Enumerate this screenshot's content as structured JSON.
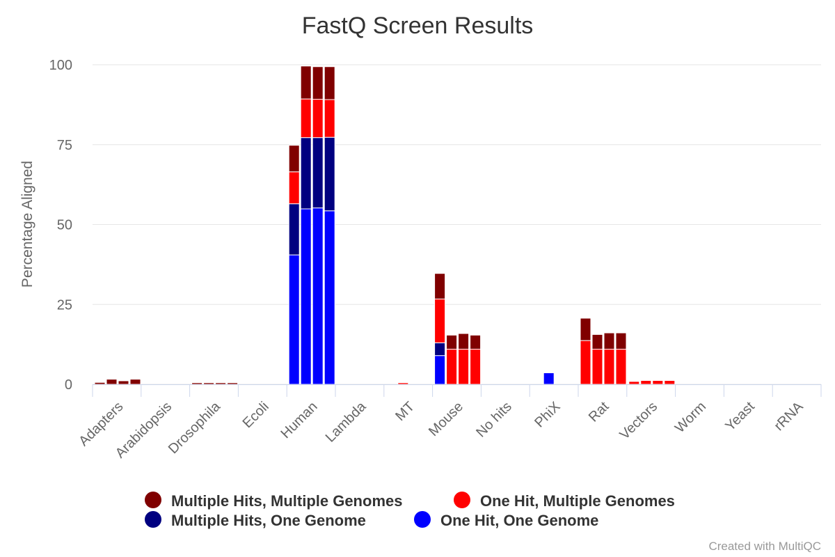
{
  "chart_data": {
    "type": "bar",
    "stacked": true,
    "title": "FastQ Screen Results",
    "ylabel": "Percentage Aligned",
    "ylim": [
      0,
      100
    ],
    "yticks": [
      0,
      25,
      50,
      75,
      100
    ],
    "grid": true,
    "legend_position": "bottom",
    "bars_per_category": 4,
    "categories": [
      "Adapters",
      "Arabidopsis",
      "Drosophila",
      "Ecoli",
      "Human",
      "Lambda",
      "MT",
      "Mouse",
      "No hits",
      "PhiX",
      "Rat",
      "Vectors",
      "Worm",
      "Yeast",
      "rRNA"
    ],
    "series": [
      {
        "name": "One Hit, One Genome",
        "color": "#0000ff",
        "values": [
          [
            0,
            0,
            0,
            0
          ],
          [
            0,
            0,
            0,
            0
          ],
          [
            0,
            0,
            0,
            0
          ],
          [
            0,
            0,
            0,
            0
          ],
          [
            40.5,
            54.9,
            55.2,
            54.3
          ],
          [
            0,
            0,
            0,
            0
          ],
          [
            0,
            0,
            0,
            0
          ],
          [
            9.0,
            0,
            0,
            0
          ],
          [
            0,
            0,
            0,
            0
          ],
          [
            0,
            3.6,
            0,
            0
          ],
          [
            0,
            0,
            0,
            0
          ],
          [
            0,
            0,
            0,
            0
          ],
          [
            0,
            0,
            0,
            0
          ],
          [
            0,
            0,
            0,
            0
          ],
          [
            0,
            0,
            0,
            0
          ]
        ]
      },
      {
        "name": "Multiple Hits, One Genome",
        "color": "#000080",
        "values": [
          [
            0,
            0,
            0,
            0
          ],
          [
            0,
            0,
            0,
            0
          ],
          [
            0,
            0,
            0,
            0
          ],
          [
            0,
            0,
            0,
            0
          ],
          [
            16.0,
            22.3,
            22.0,
            23.0
          ],
          [
            0,
            0,
            0,
            0
          ],
          [
            0,
            0,
            0,
            0
          ],
          [
            4.0,
            0,
            0,
            0
          ],
          [
            0,
            0,
            0,
            0
          ],
          [
            0,
            0,
            0,
            0
          ],
          [
            0,
            0,
            0,
            0
          ],
          [
            0,
            0,
            0,
            0
          ],
          [
            0,
            0,
            0,
            0
          ],
          [
            0,
            0,
            0,
            0
          ],
          [
            0,
            0,
            0,
            0
          ]
        ]
      },
      {
        "name": "One Hit, Multiple Genomes",
        "color": "#ff0000",
        "values": [
          [
            0,
            0,
            0,
            0
          ],
          [
            0,
            0,
            0,
            0
          ],
          [
            0,
            0,
            0,
            0
          ],
          [
            0,
            0,
            0,
            0
          ],
          [
            10.0,
            12.1,
            12.0,
            11.8
          ],
          [
            0,
            0,
            0,
            0
          ],
          [
            0,
            0.5,
            0,
            0
          ],
          [
            13.7,
            11.0,
            11.0,
            11.0
          ],
          [
            0,
            0,
            0,
            0
          ],
          [
            0,
            0,
            0,
            0
          ],
          [
            13.7,
            11.0,
            11.0,
            11.0
          ],
          [
            0.9,
            1.2,
            1.2,
            1.2
          ],
          [
            0,
            0,
            0,
            0
          ],
          [
            0,
            0,
            0,
            0
          ],
          [
            0,
            0,
            0,
            0
          ]
        ]
      },
      {
        "name": "Multiple Hits, Multiple Genomes",
        "color": "#800000",
        "values": [
          [
            0.6,
            1.6,
            1.1,
            1.6
          ],
          [
            0,
            0,
            0,
            0
          ],
          [
            0.5,
            0.5,
            0.5,
            0.5
          ],
          [
            0,
            0,
            0,
            0
          ],
          [
            8.3,
            10.3,
            10.2,
            10.3
          ],
          [
            0,
            0,
            0,
            0
          ],
          [
            0,
            0,
            0,
            0
          ],
          [
            8.0,
            4.4,
            4.9,
            4.4
          ],
          [
            0,
            0,
            0,
            0
          ],
          [
            0,
            0,
            0,
            0
          ],
          [
            7.0,
            4.6,
            5.1,
            5.1
          ],
          [
            0,
            0,
            0,
            0
          ],
          [
            0,
            0,
            0,
            0
          ],
          [
            0,
            0,
            0,
            0
          ],
          [
            0,
            0,
            0,
            0
          ]
        ]
      }
    ],
    "legend_order": [
      "Multiple Hits, Multiple Genomes",
      "One Hit, Multiple Genomes",
      "Multiple Hits, One Genome",
      "One Hit, One Genome"
    ],
    "credit": "Created with MultiQC"
  }
}
